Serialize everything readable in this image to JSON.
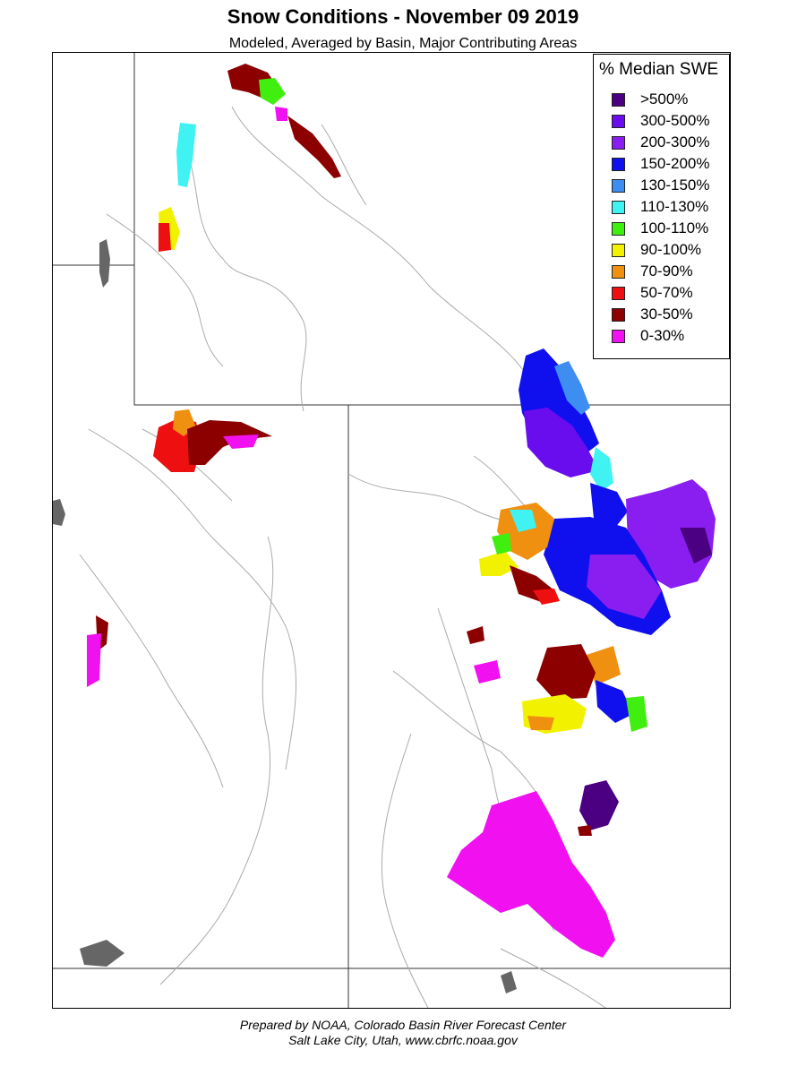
{
  "title": "Snow Conditions - November 09 2019",
  "subtitle": "Modeled, Averaged by Basin, Major Contributing Areas",
  "legend": {
    "title": "% Median SWE",
    "items": [
      {
        "label": ">500%",
        "color": "#4B0082"
      },
      {
        "label": "300-500%",
        "color": "#6A0DEE"
      },
      {
        "label": "200-300%",
        "color": "#8A1EF0"
      },
      {
        "label": "150-200%",
        "color": "#1010EE"
      },
      {
        "label": "130-150%",
        "color": "#3D8EF0"
      },
      {
        "label": "110-130%",
        "color": "#40F2F2"
      },
      {
        "label": "100-110%",
        "color": "#40EE10"
      },
      {
        "label": "90-100%",
        "color": "#F2F200"
      },
      {
        "label": "70-90%",
        "color": "#F09010"
      },
      {
        "label": "50-70%",
        "color": "#EE1010"
      },
      {
        "label": "30-50%",
        "color": "#8C0000"
      },
      {
        "label": "0-30%",
        "color": "#F010F0"
      }
    ]
  },
  "footer": {
    "line1": "Prepared by NOAA, Colorado Basin River Forecast Center",
    "line2": "Salt Lake City, Utah, www.cbrfc.noaa.gov"
  }
}
